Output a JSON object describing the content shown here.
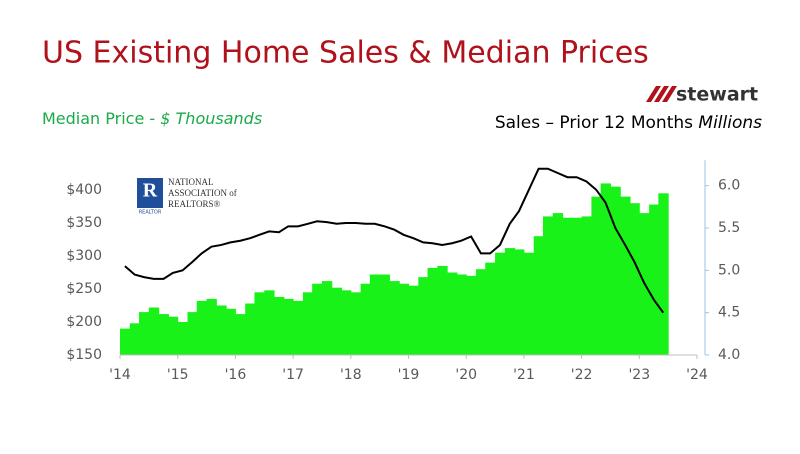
{
  "chart_data": {
    "type": "bar-line",
    "title": "US Existing Home Sales & Median Prices",
    "y_axis_label": "Median Price - ",
    "y_axis_label_units": "$ Thousands",
    "y2_axis_label": "Sales – Prior 12 Months ",
    "y2_axis_label_units": "Millions",
    "logos": {
      "stewart": "stewart",
      "nar_line1": "NATIONAL",
      "nar_line2": "ASSOCIATION of",
      "nar_line3": "REALTORS®",
      "nar_badge": "REALTOR"
    },
    "x": [
      2014,
      2014.17,
      2014.33,
      2014.5,
      2014.67,
      2014.83,
      2015,
      2015.17,
      2015.33,
      2015.5,
      2015.67,
      2015.83,
      2016,
      2016.17,
      2016.33,
      2016.5,
      2016.67,
      2016.83,
      2017,
      2017.17,
      2017.33,
      2017.5,
      2017.67,
      2017.83,
      2018,
      2018.17,
      2018.33,
      2018.5,
      2018.67,
      2018.83,
      2019,
      2019.17,
      2019.33,
      2019.5,
      2019.67,
      2019.83,
      2020,
      2020.17,
      2020.33,
      2020.5,
      2020.67,
      2020.83,
      2021,
      2021.17,
      2021.33,
      2021.5,
      2021.67,
      2021.83,
      2022,
      2022.17,
      2022.33,
      2022.5,
      2022.67,
      2022.83,
      2023,
      2023.17,
      2023.33
    ],
    "series": [
      {
        "name": "Median Price",
        "type": "bar",
        "color": "#19f219",
        "values": [
          190,
          198,
          215,
          222,
          212,
          208,
          200,
          215,
          232,
          235,
          225,
          220,
          212,
          228,
          245,
          248,
          238,
          235,
          232,
          245,
          258,
          262,
          252,
          248,
          245,
          258,
          272,
          272,
          262,
          258,
          255,
          268,
          282,
          285,
          275,
          272,
          270,
          280,
          290,
          305,
          312,
          310,
          305,
          330,
          360,
          365,
          358,
          358,
          360,
          390,
          410,
          405,
          390,
          380,
          365,
          378,
          395
        ]
      },
      {
        "name": "Sales",
        "type": "line",
        "axis": "y2",
        "color": "#000000",
        "values": [
          5.05,
          4.95,
          4.92,
          4.9,
          4.9,
          4.97,
          5.0,
          5.1,
          5.2,
          5.28,
          5.3,
          5.33,
          5.35,
          5.38,
          5.42,
          5.46,
          5.45,
          5.52,
          5.52,
          5.55,
          5.58,
          5.57,
          5.55,
          5.56,
          5.56,
          5.55,
          5.55,
          5.52,
          5.48,
          5.42,
          5.38,
          5.33,
          5.32,
          5.3,
          5.32,
          5.35,
          5.4,
          5.2,
          5.2,
          5.3,
          5.55,
          5.7,
          5.95,
          6.2,
          6.2,
          6.15,
          6.1,
          6.1,
          6.05,
          5.95,
          5.8,
          5.5,
          5.3,
          5.1,
          4.85,
          4.65,
          4.5
        ]
      }
    ],
    "xlim": [
      2014,
      2024
    ],
    "xticks": [
      {
        "value": 2014,
        "label": "'14"
      },
      {
        "value": 2015,
        "label": "'15"
      },
      {
        "value": 2016,
        "label": "'16"
      },
      {
        "value": 2017,
        "label": "'17"
      },
      {
        "value": 2018,
        "label": "'18"
      },
      {
        "value": 2019,
        "label": "'19"
      },
      {
        "value": 2020,
        "label": "'20"
      },
      {
        "value": 2021,
        "label": "'21"
      },
      {
        "value": 2022,
        "label": "'22"
      },
      {
        "value": 2023,
        "label": "'23"
      },
      {
        "value": 2024,
        "label": "'24"
      }
    ],
    "ylim": [
      150,
      445
    ],
    "yticks": [
      {
        "value": 150,
        "label": "$150"
      },
      {
        "value": 200,
        "label": "$200"
      },
      {
        "value": 250,
        "label": "$250"
      },
      {
        "value": 300,
        "label": "$300"
      },
      {
        "value": 350,
        "label": "$350"
      },
      {
        "value": 400,
        "label": "$400"
      }
    ],
    "y2lim": [
      4.0,
      6.3
    ],
    "y2ticks": [
      {
        "value": 4,
        "label": "4.0"
      },
      4.5,
      {
        "value": 5,
        "label": "5.0"
      },
      5.5,
      {
        "value": 6,
        "label": "6.0"
      }
    ]
  }
}
